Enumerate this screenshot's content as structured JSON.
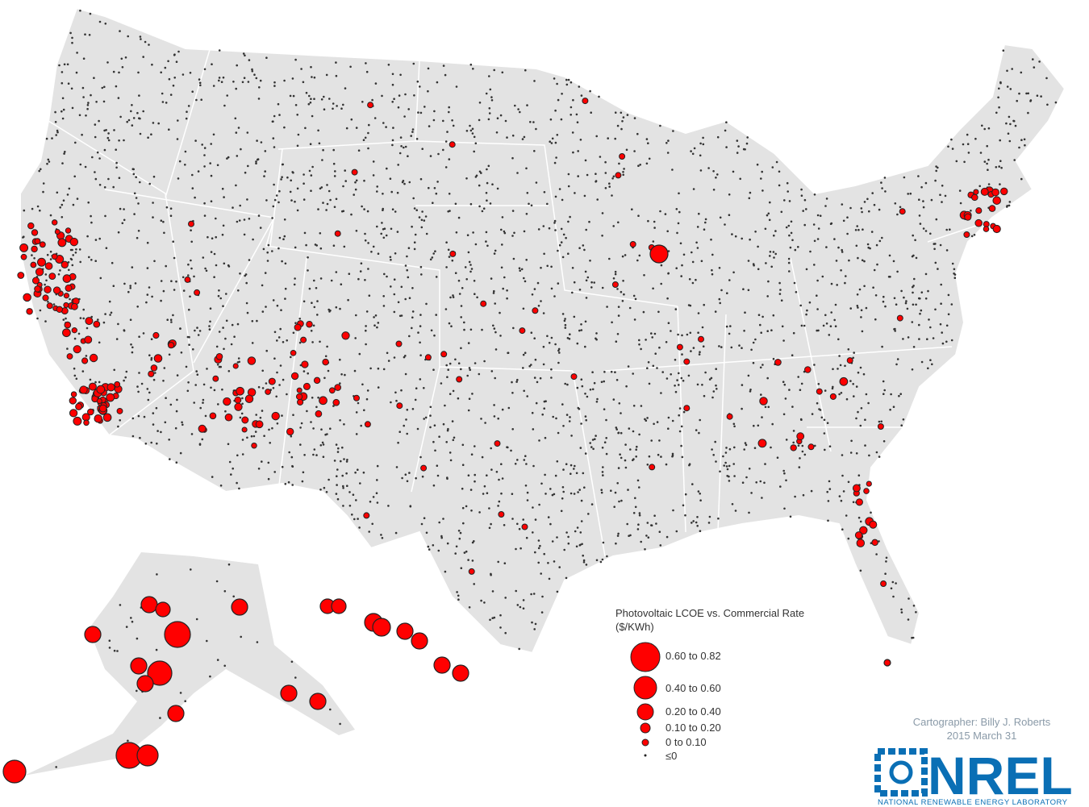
{
  "legend": {
    "title": "Photovoltaic LCOE vs. Commercial Rate",
    "unit": "($/KWh)",
    "items": [
      "0.60 to 0.82",
      "0.40 to 0.60",
      "0.20 to 0.40",
      "0.10 to 0.20",
      "0 to 0.10",
      "≤0"
    ]
  },
  "credits": {
    "cartographer": "Cartographer: Billy J. Roberts",
    "date": "2015 March 31"
  },
  "logo": {
    "name": "NREL",
    "subtitle": "NATIONAL RENEWABLE ENERGY LABORATORY"
  }
}
